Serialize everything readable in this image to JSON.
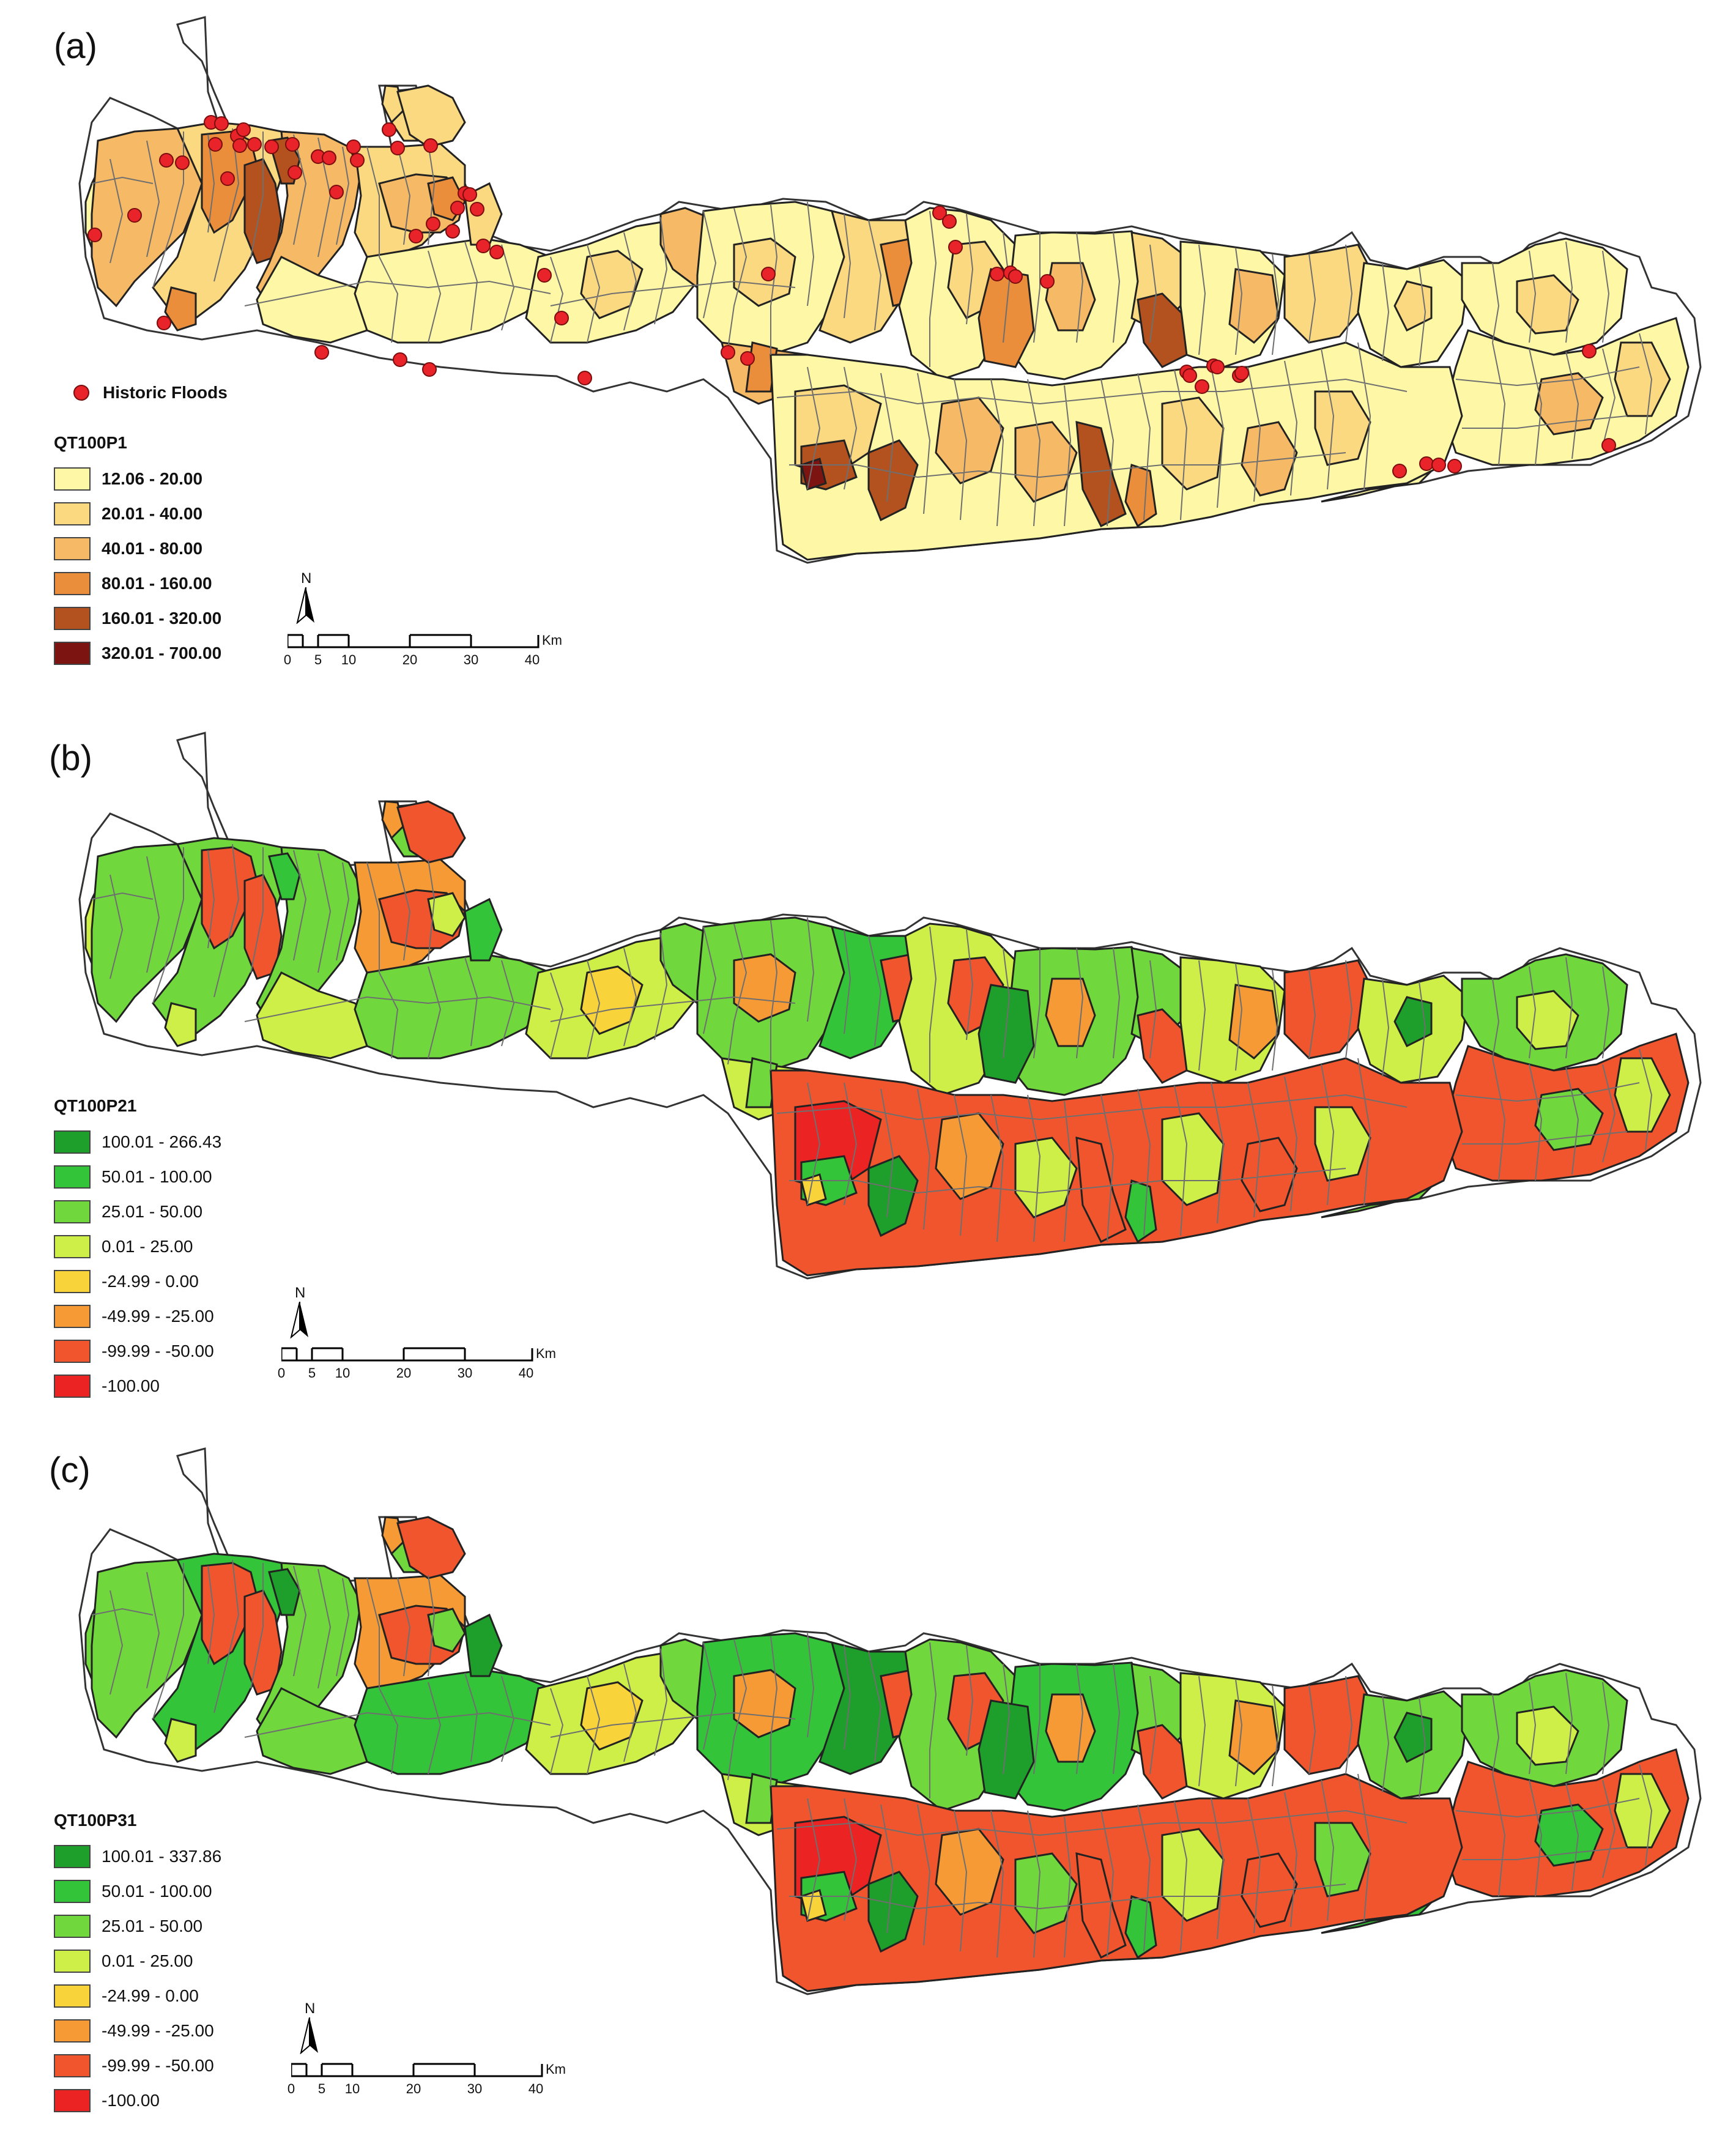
{
  "panels": [
    {
      "label": "(a)",
      "variable": "QT100P1",
      "historic_floods_label": "Historic Floods",
      "legend_classes": [
        {
          "label": "12.06 - 20.00",
          "color": "#fdf7a6"
        },
        {
          "label": "20.01 - 40.00",
          "color": "#fbd981"
        },
        {
          "label": "40.01 - 80.00",
          "color": "#f6b965"
        },
        {
          "label": "80.01 - 160.00",
          "color": "#ea8e3c"
        },
        {
          "label": "160.01 - 320.00",
          "color": "#b4521f"
        },
        {
          "label": "320.01 - 700.00",
          "color": "#7c1511"
        }
      ]
    },
    {
      "label": "(b)",
      "variable": "QT100P21",
      "legend_classes": [
        {
          "label": "100.01 - 266.43",
          "color": "#1e9e2b"
        },
        {
          "label": "50.01 - 100.00",
          "color": "#33c43a"
        },
        {
          "label": "25.01 - 50.00",
          "color": "#70d83d"
        },
        {
          "label": "0.01 - 25.00",
          "color": "#cdef48"
        },
        {
          "label": "-24.99 - 0.00",
          "color": "#f8d43a"
        },
        {
          "label": "-49.99 - -25.00",
          "color": "#f59a34"
        },
        {
          "label": "-99.99 - -50.00",
          "color": "#f1552d"
        },
        {
          "label": "-100.00",
          "color": "#ec2323"
        }
      ]
    },
    {
      "label": "(c)",
      "variable": "QT100P31",
      "legend_classes": [
        {
          "label": "100.01 - 337.86",
          "color": "#1e9e2b"
        },
        {
          "label": "50.01 - 100.00",
          "color": "#33c43a"
        },
        {
          "label": "25.01 - 50.00",
          "color": "#70d83d"
        },
        {
          "label": "0.01 - 25.00",
          "color": "#cdef48"
        },
        {
          "label": "-24.99 - 0.00",
          "color": "#f8d43a"
        },
        {
          "label": "-49.99 - -25.00",
          "color": "#f59a34"
        },
        {
          "label": "-99.99 - -50.00",
          "color": "#f1552d"
        },
        {
          "label": "-100.00",
          "color": "#ec2323"
        }
      ]
    }
  ],
  "north_label": "N",
  "scale": {
    "ticks": [
      "0",
      "5",
      "10",
      "20",
      "30",
      "40"
    ],
    "unit": "Km"
  },
  "historic_flood_color": "#e8232a"
}
